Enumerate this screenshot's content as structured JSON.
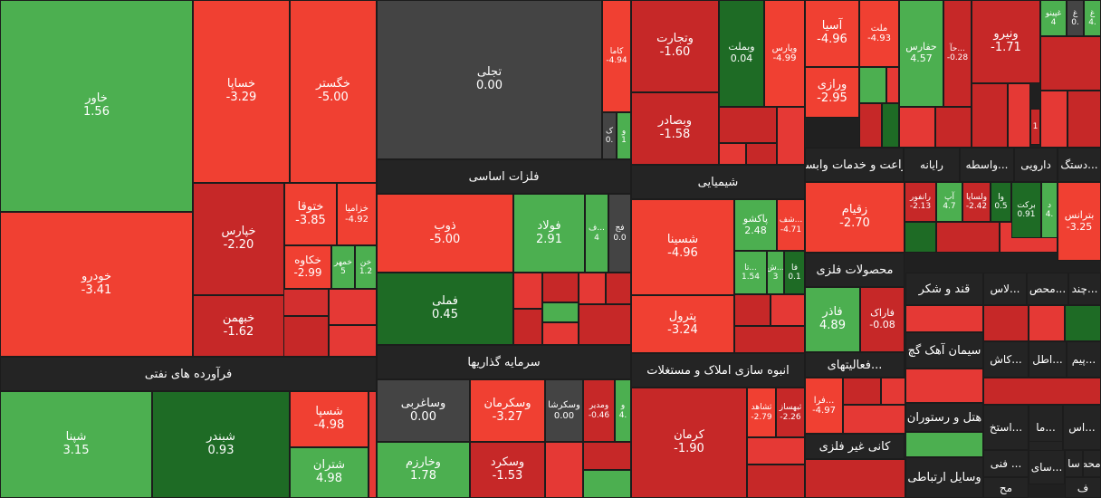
{
  "chart_data": {
    "type": "heatmap",
    "title": "",
    "colors": {
      "strong_negative": "#c62828",
      "negative": "#f04032",
      "neutral": "#444444",
      "positive": "#4caf50",
      "strong_positive": "#1e6b25",
      "header": "#242424"
    },
    "sectors": [
      "فرآورده های نفتی",
      "فلزات اساسی",
      "سرمایه گذاریها",
      "شیمیایی",
      "انبوه سازی املاک و مستغلات",
      "زراعت و خدمات وابسته",
      "رایانه",
      "واسطه...",
      "دارویی",
      "دستگ...",
      "محصولات فلزی",
      "فعالیتهای...",
      "کانی غیر فلزی",
      "قند و شکر",
      "لاس...",
      "محص...",
      "چند...",
      "سیمان آهک گچ",
      "کاش...",
      "اطل...",
      "پیم...",
      "هتل و رستوران",
      "استخ...",
      "ما...",
      "اس...",
      "ف...",
      "وسایل ارتباطی",
      "فنی ...",
      "سای...",
      "سا",
      "مح",
      "محصو...",
      "ف",
      "من"
    ],
    "tiles": [
      {
        "symbol": "خاور",
        "change": "1.56"
      },
      {
        "symbol": "خودرو",
        "change": "-3.41"
      },
      {
        "symbol": "خساپا",
        "change": "-3.29"
      },
      {
        "symbol": "خگستر",
        "change": "-5.00"
      },
      {
        "symbol": "خپارس",
        "change": "-2.20"
      },
      {
        "symbol": "ختوقا",
        "change": "-3.85"
      },
      {
        "symbol": "خزامیا",
        "change": "-4.92"
      },
      {
        "symbol": "خکاوه",
        "change": "-2.99"
      },
      {
        "symbol": "خمهر",
        "change": "5"
      },
      {
        "symbol": "خن",
        "change": "1.2"
      },
      {
        "symbol": "خبهمن",
        "change": "-1.62"
      },
      {
        "symbol": "شپنا",
        "change": "3.15"
      },
      {
        "symbol": "شبندر",
        "change": "0.93"
      },
      {
        "symbol": "شسپا",
        "change": "-4.98"
      },
      {
        "symbol": "شتران",
        "change": "4.98"
      },
      {
        "symbol": "تجلی",
        "change": "0.00"
      },
      {
        "symbol": "کاما",
        "change": "-4.94"
      },
      {
        "symbol": "ک",
        "change": "0."
      },
      {
        "symbol": "و",
        "change": "1"
      },
      {
        "symbol": "ذوب",
        "change": "-5.00"
      },
      {
        "symbol": "فولاد",
        "change": "2.91"
      },
      {
        "symbol": "ف...",
        "change": "4"
      },
      {
        "symbol": "فج",
        "change": "0.0"
      },
      {
        "symbol": "فملی",
        "change": "0.45"
      },
      {
        "symbol": "وساغربی",
        "change": "0.00"
      },
      {
        "symbol": "وسکرمان",
        "change": "-3.27"
      },
      {
        "symbol": "وسکرشا",
        "change": "0.00"
      },
      {
        "symbol": "ومدیر",
        "change": "-0.46"
      },
      {
        "symbol": "و",
        "change": "4."
      },
      {
        "symbol": "وخارزم",
        "change": "1.78"
      },
      {
        "symbol": "وسکرد",
        "change": "-1.53"
      },
      {
        "symbol": "وتجارت",
        "change": "-1.60"
      },
      {
        "symbol": "وبملت",
        "change": "0.04"
      },
      {
        "symbol": "وپارس",
        "change": "-4.99"
      },
      {
        "symbol": "وبصادر",
        "change": "-1.58"
      },
      {
        "symbol": "شسینا",
        "change": "-4.96"
      },
      {
        "symbol": "پاکشو",
        "change": "2.48"
      },
      {
        "symbol": "شف...",
        "change": "-4.71"
      },
      {
        "symbol": "تا...",
        "change": "1.54"
      },
      {
        "symbol": "ش...",
        "change": "3"
      },
      {
        "symbol": "فا",
        "change": "0.1"
      },
      {
        "symbol": "پترول",
        "change": "-3.24"
      },
      {
        "symbol": "کرمان",
        "change": "-1.90"
      },
      {
        "symbol": "ثشاهد",
        "change": "-2.79"
      },
      {
        "symbol": "ثبهساز",
        "change": "-2.26"
      },
      {
        "symbol": "آسیا",
        "change": "-4.96"
      },
      {
        "symbol": "ملت",
        "change": "-4.93"
      },
      {
        "symbol": "ورازی",
        "change": "-2.95"
      },
      {
        "symbol": "حفارس",
        "change": "4.57"
      },
      {
        "symbol": "حآ...",
        "change": "-0.28"
      },
      {
        "symbol": "ونیرو",
        "change": "-1.71"
      },
      {
        "symbol": "غپینو",
        "change": "4"
      },
      {
        "symbol": "غ",
        "change": "0."
      },
      {
        "symbol": "غ",
        "change": "4."
      },
      {
        "symbol": "1",
        "change": ""
      },
      {
        "symbol": "زقیام",
        "change": "-2.70"
      },
      {
        "symbol": "رانفور",
        "change": "-2.13"
      },
      {
        "symbol": "آپ",
        "change": "4.7"
      },
      {
        "symbol": "ولساپا",
        "change": "-2.42"
      },
      {
        "symbol": "وا",
        "change": "0.5"
      },
      {
        "symbol": "برکت",
        "change": "0.91"
      },
      {
        "symbol": "د",
        "change": "4."
      },
      {
        "symbol": "بترانس",
        "change": "-3.25"
      },
      {
        "symbol": "فاذر",
        "change": "4.89"
      },
      {
        "symbol": "فاراک",
        "change": "-0.08"
      },
      {
        "symbol": "فرا...",
        "change": "-4.97"
      }
    ]
  }
}
